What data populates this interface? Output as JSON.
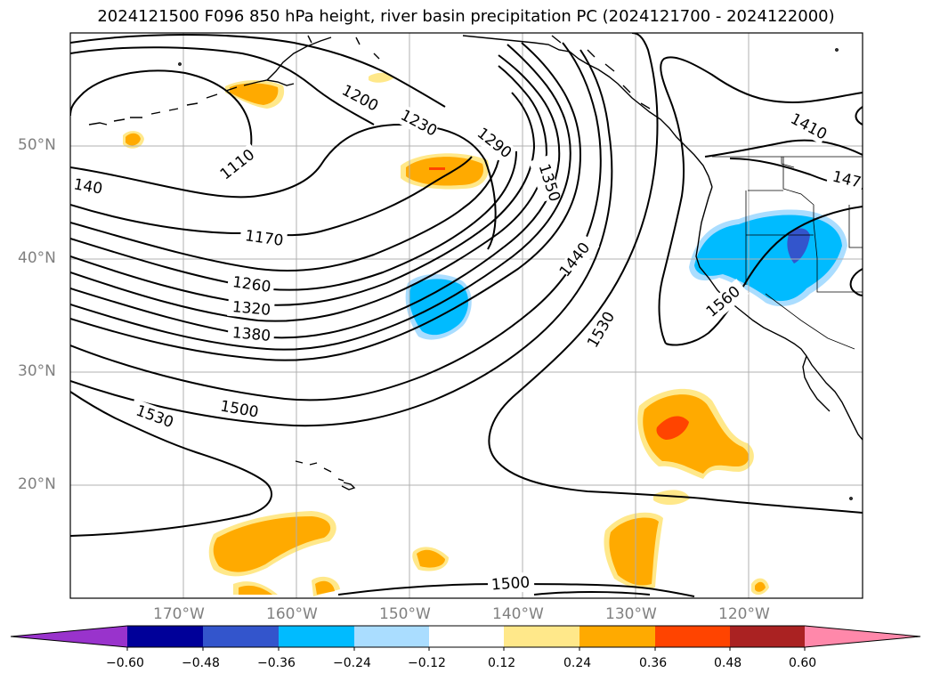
{
  "title": "2024121500 F096 850 hPa height, river basin precipitation PC (2024121700 - 2024122000)",
  "lat_labels": [
    "50°N",
    "40°N",
    "30°N",
    "20°N"
  ],
  "lon_labels": [
    "170°W",
    "160°W",
    "150°W",
    "140°W",
    "130°W",
    "120°W"
  ],
  "contour_labels": [
    "1110",
    "1200",
    "1230",
    "1290",
    "1350",
    "1410",
    "147",
    "140",
    "1170",
    "1260",
    "1320",
    "1380",
    "1440",
    "1530",
    "1560",
    "1500",
    "1530",
    "1500"
  ],
  "colorbar": {
    "ticks": [
      "−0.60",
      "−0.48",
      "−0.36",
      "−0.24",
      "−0.12",
      "0.12",
      "0.24",
      "0.36",
      "0.48",
      "0.60"
    ],
    "colors": [
      "#9933cc",
      "#000099",
      "#3355cc",
      "#00bbff",
      "#aaddff",
      "#ffffff",
      "#ffe88a",
      "#ffaa00",
      "#ff4400",
      "#aa2222",
      "#ff88aa"
    ]
  },
  "map_extent": {
    "lon": [
      -180,
      -110
    ],
    "lat": [
      10,
      60
    ]
  }
}
